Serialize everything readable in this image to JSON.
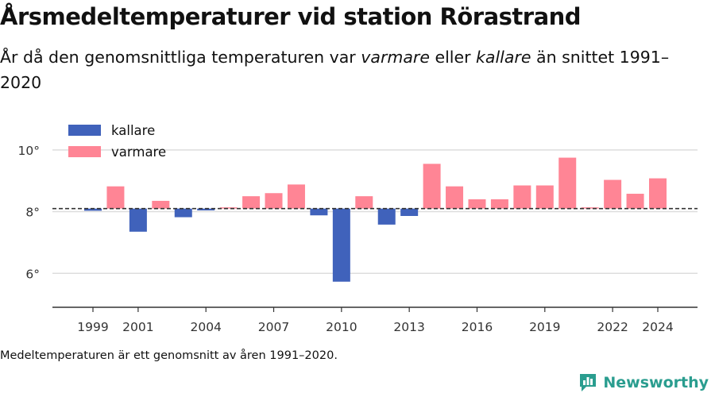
{
  "header": {
    "title": "Årsmedeltemperaturer vid station Rörastrand",
    "subtitle_parts": [
      {
        "text": "År då den genomsnittliga temperaturen var ",
        "italic": false
      },
      {
        "text": "varmare",
        "italic": true
      },
      {
        "text": " eller ",
        "italic": false
      },
      {
        "text": "kallare",
        "italic": true
      },
      {
        "text": " än snittet 1991–2020",
        "italic": false
      }
    ]
  },
  "footnote": "Medeltemperaturen är ett genomsnitt av åren 1991–2020.",
  "brand": {
    "name": "Newsworthy",
    "icon": "newsworthy-logo-icon",
    "color": "#2a9d8f"
  },
  "chart_data": {
    "type": "bar",
    "baseline": 8.1,
    "x": [
      1999,
      2000,
      2001,
      2002,
      2003,
      2004,
      2005,
      2006,
      2007,
      2008,
      2009,
      2010,
      2011,
      2012,
      2013,
      2014,
      2015,
      2016,
      2017,
      2018,
      2019,
      2020,
      2021,
      2022,
      2023,
      2024
    ],
    "values": [
      8.03,
      8.82,
      7.35,
      8.35,
      7.82,
      8.04,
      8.13,
      8.5,
      8.6,
      8.88,
      7.88,
      5.73,
      8.5,
      7.58,
      7.86,
      9.55,
      8.82,
      8.4,
      8.4,
      8.85,
      8.85,
      9.75,
      8.13,
      9.03,
      8.58,
      9.08
    ],
    "x_ticks": [
      1999,
      2001,
      2004,
      2007,
      2010,
      2013,
      2016,
      2019,
      2022,
      2024
    ],
    "y_ticks": [
      {
        "value": 6,
        "label": "6°"
      },
      {
        "value": 8,
        "label": "8°"
      },
      {
        "value": 10,
        "label": "10°"
      }
    ],
    "ylim": [
      4.9,
      11
    ],
    "legend": {
      "placement": "top-left",
      "items": [
        {
          "label": "kallare",
          "color": "#4062bb"
        },
        {
          "label": "varmare",
          "color": "#ff8595"
        }
      ]
    },
    "colors": {
      "colder": "#4062bb",
      "warmer": "#ff8595",
      "baseline": "#333333",
      "grid": "#dddddd",
      "axis": "#333333"
    },
    "grid": true
  }
}
